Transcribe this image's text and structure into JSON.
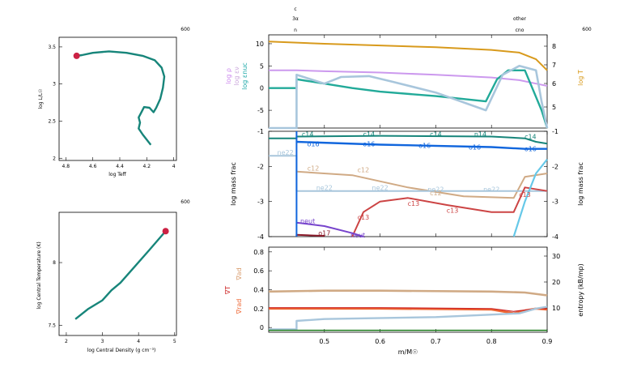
{
  "model_number": "600",
  "hr": {
    "xlabel": "log Teff",
    "ylabel": "log L/L☉",
    "xticks": [
      "4.8",
      "4.6",
      "4.4",
      "4.2",
      "4"
    ],
    "yticks": [
      "3.5",
      "3",
      "2.5",
      "2"
    ],
    "xlim": [
      4.85,
      3.98
    ],
    "ylim": [
      1.97,
      3.63
    ],
    "track": [
      [
        4.17,
        2.18
      ],
      [
        4.2,
        2.25
      ],
      [
        4.23,
        2.32
      ],
      [
        4.26,
        2.4
      ],
      [
        4.25,
        2.48
      ],
      [
        4.26,
        2.55
      ],
      [
        4.24,
        2.62
      ],
      [
        4.22,
        2.69
      ],
      [
        4.18,
        2.68
      ],
      [
        4.15,
        2.62
      ],
      [
        4.13,
        2.68
      ],
      [
        4.1,
        2.8
      ],
      [
        4.08,
        2.95
      ],
      [
        4.07,
        3.1
      ],
      [
        4.09,
        3.22
      ],
      [
        4.14,
        3.32
      ],
      [
        4.23,
        3.38
      ],
      [
        4.35,
        3.42
      ],
      [
        4.48,
        3.44
      ],
      [
        4.6,
        3.42
      ],
      [
        4.68,
        3.39
      ],
      [
        4.72,
        3.38
      ]
    ],
    "current": [
      4.72,
      3.38
    ],
    "colors": {
      "track": "#17857a",
      "point": "#cc2244"
    }
  },
  "rho_t": {
    "xlabel": "log Central Density (g cm⁻³)",
    "ylabel": "log Central Temperature (K)",
    "xticks": [
      "2",
      "3",
      "4",
      "5"
    ],
    "yticks": [
      "8",
      "7.5"
    ],
    "xlim": [
      1.8,
      5.05
    ],
    "ylim": [
      7.42,
      8.4
    ],
    "track": [
      [
        2.25,
        7.55
      ],
      [
        2.6,
        7.63
      ],
      [
        3.0,
        7.7
      ],
      [
        3.25,
        7.78
      ],
      [
        3.5,
        7.84
      ],
      [
        3.9,
        7.97
      ],
      [
        4.3,
        8.1
      ],
      [
        4.6,
        8.2
      ],
      [
        4.75,
        8.25
      ]
    ],
    "current": [
      4.75,
      8.25
    ]
  },
  "top_annotations": {
    "left": [
      "c",
      "3α",
      "n"
    ],
    "right": [
      "other",
      "cno"
    ]
  },
  "profile_x": {
    "label": "m/M☉",
    "ticks": [
      "0.5",
      "0.6",
      "0.7",
      "0.8",
      "0.9"
    ],
    "xlim": [
      0.4,
      0.9
    ]
  },
  "panel1": {
    "left_labels": [
      "log ρ",
      "log εν",
      "log εnuc"
    ],
    "left_label_colors": [
      "#cc88ee",
      "#ccaadd",
      "#22aaaa"
    ],
    "right_label": "log T",
    "yticks_left": [
      "10",
      "5",
      "0",
      "-5"
    ],
    "yticks_right": [
      "8",
      "7",
      "6",
      "5"
    ],
    "ylim": [
      -9,
      12
    ]
  },
  "panel2": {
    "ylabel": "log mass frac",
    "yticks": [
      "-1",
      "-2",
      "-3",
      "-4"
    ],
    "ylim": [
      -4,
      -1
    ],
    "series_labels": [
      "c14",
      "o16",
      "ne22",
      "c12",
      "c13",
      "neut",
      "o17",
      "o18",
      "n14"
    ]
  },
  "panel3": {
    "left_labels": [
      "∇ad",
      "∇T",
      "∇rad"
    ],
    "right_label": "entropy (kB/mp)",
    "yticks_left": [
      "0.8",
      "0.6",
      "0.4",
      "0.2",
      "0"
    ],
    "yticks_right": [
      "30",
      "20",
      "10"
    ],
    "ylim": [
      -0.05,
      0.85
    ]
  },
  "colors": {
    "teal": "#17857a",
    "blue": "#1166dd",
    "tan": "#d0aa85",
    "lightblue": "#a8c6dc",
    "red": "#cc4444",
    "purple": "#7744cc",
    "orange": "#d89a1c",
    "lilac": "#cc99ee",
    "cyan": "#66c8e8",
    "maroon": "#8b1a2a",
    "darkred": "#aa2222",
    "green": "#1a7a1a"
  }
}
